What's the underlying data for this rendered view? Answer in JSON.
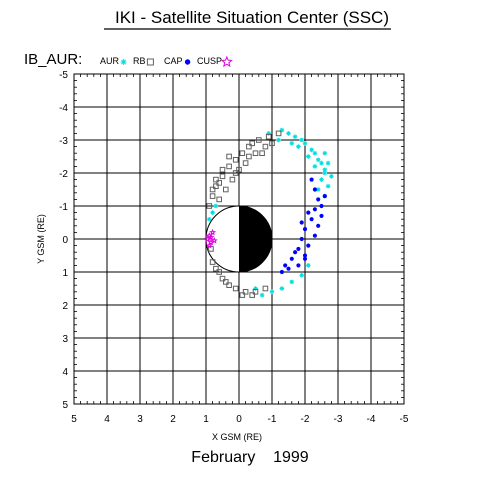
{
  "header": {
    "title": "IKI - Satellite Situation Center (SSC)"
  },
  "chart_data": {
    "type": "scatter",
    "title": "IKI - Satellite Situation Center (SSC)",
    "satellite": "IB_AUR:",
    "date": "February    1999",
    "xlabel": "X GSM (RE)",
    "ylabel": "Y GSM (RE)",
    "xlim": [
      5,
      -5
    ],
    "ylim": [
      -5,
      5
    ],
    "x_reversed": true,
    "y_increases_downward": true,
    "grid": true,
    "x_tick_labels": [
      "5",
      "4",
      "3",
      "2",
      "1",
      "0",
      "-1",
      "-2",
      "-3",
      "-4",
      "-5"
    ],
    "y_tick_labels": [
      "-5",
      "-4",
      "-3",
      "-2",
      "-1",
      "0",
      "1",
      "2",
      "3",
      "4",
      "5"
    ],
    "legend_placement": "top-left",
    "legend": [
      {
        "label": "AUR",
        "marker": "asterisk",
        "color": "#00e0e0"
      },
      {
        "label": "RB",
        "marker": "square",
        "color": "#606060"
      },
      {
        "label": "CAP",
        "marker": "dot",
        "color": "#0000ff"
      },
      {
        "label": "CUSP",
        "marker": "star",
        "color": "#e000e0"
      }
    ],
    "earth": {
      "radius": 1,
      "day_side": "white",
      "night_side": "black"
    },
    "series": [
      {
        "name": "AUR",
        "color": "#00e0e0",
        "points": [
          [
            -0.9,
            -3.2
          ],
          [
            -1.3,
            -3.3
          ],
          [
            -1.7,
            -3.1
          ],
          [
            -2.0,
            -2.9
          ],
          [
            -2.3,
            -2.6
          ],
          [
            -2.5,
            -2.3
          ],
          [
            -2.6,
            -2.0
          ],
          [
            -2.7,
            -1.6
          ],
          [
            -2.6,
            -1.3
          ],
          [
            -1.5,
            -3.2
          ],
          [
            -1.9,
            -3.0
          ],
          [
            -2.2,
            -2.7
          ],
          [
            -2.4,
            -2.4
          ],
          [
            -2.6,
            -2.1
          ],
          [
            -2.5,
            -1.8
          ],
          [
            -2.3,
            -2.2
          ],
          [
            -2.1,
            -2.5
          ],
          [
            -1.8,
            -2.8
          ],
          [
            -1.6,
            -2.9
          ],
          [
            -2.7,
            -2.3
          ],
          [
            -2.6,
            -2.6
          ],
          [
            -2.8,
            -1.9
          ],
          [
            -2.4,
            -1.5
          ],
          [
            -1.2,
            -3.0
          ],
          [
            0.8,
            -0.8
          ],
          [
            0.9,
            -0.6
          ],
          [
            0.7,
            -1.0
          ],
          [
            -1.3,
            1.5
          ],
          [
            -1.0,
            1.6
          ],
          [
            -0.7,
            1.7
          ],
          [
            -0.5,
            1.5
          ],
          [
            -1.6,
            1.3
          ],
          [
            -1.9,
            1.1
          ],
          [
            -2.1,
            0.8
          ]
        ]
      },
      {
        "name": "RB",
        "color": "#606060",
        "points": [
          [
            0.1,
            -2.4
          ],
          [
            0.3,
            -2.2
          ],
          [
            0.5,
            -1.9
          ],
          [
            0.7,
            -1.6
          ],
          [
            0.8,
            -1.3
          ],
          [
            0.9,
            -1.0
          ],
          [
            -0.3,
            -2.8
          ],
          [
            -0.6,
            -3.0
          ],
          [
            -0.9,
            -3.1
          ],
          [
            -1.2,
            -3.2
          ],
          [
            -0.1,
            -2.6
          ],
          [
            0.0,
            -2.1
          ],
          [
            0.2,
            -1.8
          ],
          [
            0.4,
            -1.5
          ],
          [
            0.6,
            -1.2
          ],
          [
            -0.2,
            -2.3
          ],
          [
            -0.5,
            -2.6
          ],
          [
            -0.8,
            -2.8
          ],
          [
            -1.0,
            -2.9
          ],
          [
            0.3,
            -2.5
          ],
          [
            -0.4,
            -2.9
          ],
          [
            0.5,
            -2.1
          ],
          [
            0.7,
            -1.8
          ],
          [
            0.1,
            -2.0
          ],
          [
            -0.3,
            -2.5
          ],
          [
            0.8,
            -1.5
          ],
          [
            0.6,
            -1.7
          ],
          [
            -0.7,
            -2.6
          ],
          [
            0.85,
            0.3
          ],
          [
            0.8,
            0.7
          ],
          [
            0.6,
            1.0
          ],
          [
            0.4,
            1.3
          ],
          [
            0.1,
            1.5
          ],
          [
            -0.2,
            1.6
          ],
          [
            -0.5,
            1.6
          ],
          [
            -0.8,
            1.5
          ],
          [
            0.7,
            0.9
          ],
          [
            0.3,
            1.4
          ],
          [
            -0.1,
            1.7
          ],
          [
            -0.4,
            1.7
          ],
          [
            0.5,
            1.2
          ]
        ]
      },
      {
        "name": "CAP",
        "color": "#0000ff",
        "points": [
          [
            -2.3,
            -1.5
          ],
          [
            -2.4,
            -1.2
          ],
          [
            -2.3,
            -0.9
          ],
          [
            -2.2,
            -0.6
          ],
          [
            -2.0,
            -0.3
          ],
          [
            -1.9,
            0.0
          ],
          [
            -1.8,
            0.3
          ],
          [
            -1.6,
            0.6
          ],
          [
            -1.5,
            0.9
          ],
          [
            -2.5,
            -1.0
          ],
          [
            -2.5,
            -0.7
          ],
          [
            -2.4,
            -0.4
          ],
          [
            -2.3,
            -0.1
          ],
          [
            -2.1,
            0.2
          ],
          [
            -2.0,
            0.5
          ],
          [
            -1.8,
            0.8
          ],
          [
            -1.3,
            1.0
          ],
          [
            -2.6,
            -1.3
          ],
          [
            -2.2,
            -1.8
          ],
          [
            -1.7,
            0.4
          ],
          [
            -1.9,
            -0.5
          ],
          [
            -2.1,
            -0.8
          ],
          [
            -1.4,
            0.8
          ],
          [
            -2.0,
            0.6
          ]
        ]
      },
      {
        "name": "CUSP",
        "color": "#e000e0",
        "points": [
          [
            0.9,
            -0.1
          ],
          [
            0.85,
            0.1
          ],
          [
            0.95,
            0.0
          ],
          [
            0.8,
            -0.2
          ],
          [
            0.9,
            0.2
          ],
          [
            0.75,
            0.05
          ],
          [
            0.85,
            -0.05
          ]
        ]
      }
    ]
  }
}
